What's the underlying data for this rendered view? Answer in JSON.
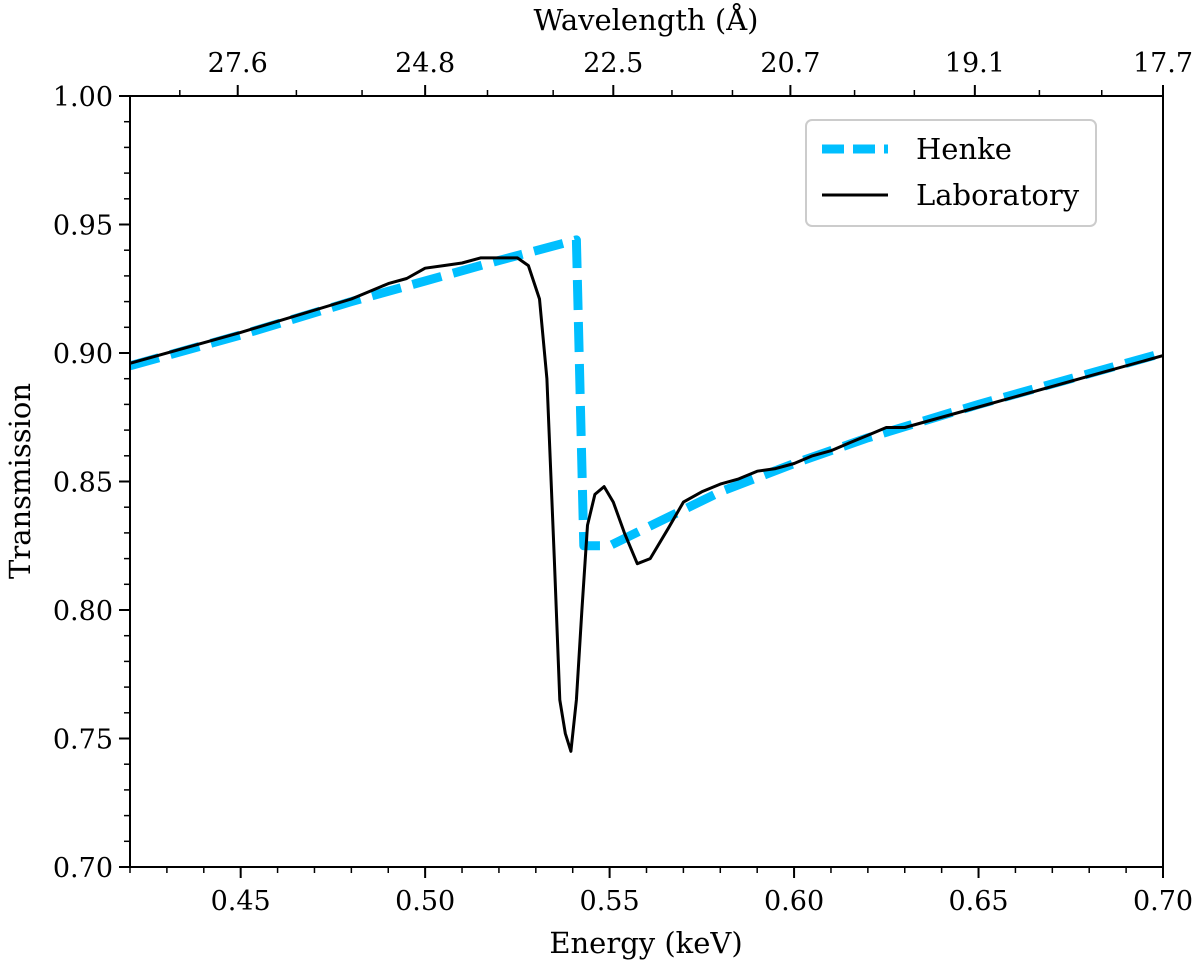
{
  "chart_data": {
    "type": "line",
    "title": "",
    "xlabel": "Energy (keV)",
    "ylabel": "Transmission",
    "top_xlabel": "Wavelength (Å)",
    "xlim": [
      0.42,
      0.7
    ],
    "ylim": [
      0.7,
      1.0
    ],
    "x_ticks": [
      0.45,
      0.5,
      0.55,
      0.6,
      0.65,
      0.7
    ],
    "x_tick_labels": [
      "0.45",
      "0.50",
      "0.55",
      "0.60",
      "0.65",
      "0.70"
    ],
    "y_ticks": [
      0.7,
      0.75,
      0.8,
      0.85,
      0.9,
      0.95,
      1.0
    ],
    "y_tick_labels": [
      "0.70",
      "0.75",
      "0.80",
      "0.85",
      "0.90",
      "0.95",
      "1.00"
    ],
    "top_ticks_energy": [
      0.4492,
      0.5,
      0.551,
      0.599,
      0.649,
      0.7
    ],
    "top_tick_labels": [
      "27.6",
      "24.8",
      "22.5",
      "20.7",
      "19.1",
      "17.7"
    ],
    "grid": false,
    "legend_position": "top-right",
    "series": [
      {
        "name": "Henke",
        "style": "dashed",
        "color": "#00bfff",
        "x": [
          0.42,
          0.45,
          0.48,
          0.5,
          0.52,
          0.541,
          0.543,
          0.55,
          0.58,
          0.6,
          0.62,
          0.65,
          0.68,
          0.7
        ],
        "y": [
          0.895,
          0.907,
          0.92,
          0.928,
          0.936,
          0.944,
          0.825,
          0.825,
          0.846,
          0.857,
          0.867,
          0.88,
          0.892,
          0.9
        ]
      },
      {
        "name": "Laboratory",
        "style": "solid",
        "color": "#000000",
        "x": [
          0.42,
          0.45,
          0.48,
          0.49,
          0.495,
          0.5,
          0.505,
          0.51,
          0.515,
          0.52,
          0.525,
          0.528,
          0.531,
          0.533,
          0.535,
          0.5365,
          0.538,
          0.5395,
          0.541,
          0.5425,
          0.544,
          0.546,
          0.5485,
          0.551,
          0.554,
          0.5575,
          0.561,
          0.566,
          0.57,
          0.575,
          0.58,
          0.585,
          0.59,
          0.595,
          0.6,
          0.605,
          0.61,
          0.615,
          0.62,
          0.625,
          0.63,
          0.65,
          0.68,
          0.7
        ],
        "y": [
          0.896,
          0.908,
          0.921,
          0.927,
          0.929,
          0.933,
          0.934,
          0.935,
          0.937,
          0.937,
          0.937,
          0.934,
          0.921,
          0.89,
          0.82,
          0.765,
          0.752,
          0.745,
          0.765,
          0.8,
          0.833,
          0.845,
          0.848,
          0.842,
          0.83,
          0.818,
          0.82,
          0.832,
          0.842,
          0.846,
          0.849,
          0.851,
          0.854,
          0.855,
          0.857,
          0.86,
          0.862,
          0.865,
          0.868,
          0.871,
          0.871,
          0.879,
          0.891,
          0.899
        ]
      }
    ]
  }
}
